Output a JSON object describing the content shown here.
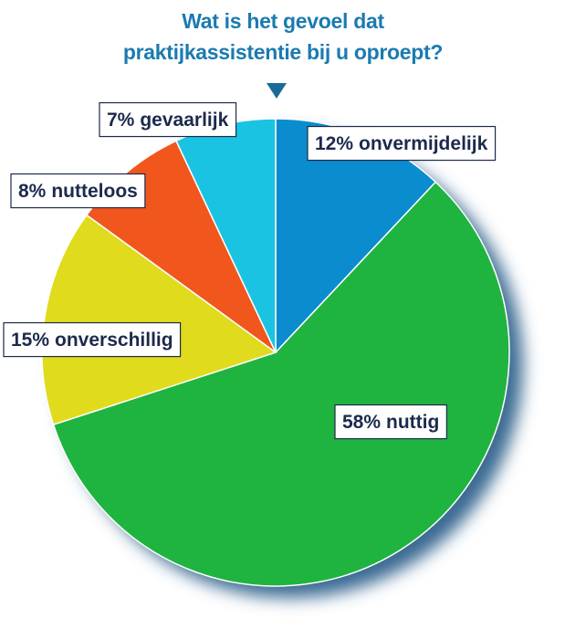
{
  "chart_data": {
    "type": "pie",
    "title": "Wat is het gevoel dat praktijkassistentie bij u oproept?",
    "categories": [
      "onvermijdelijk",
      "nuttig",
      "onverschillig",
      "nutteloos",
      "gevaarlijk"
    ],
    "values": [
      12,
      58,
      15,
      8,
      7
    ],
    "value_labels": [
      "12%",
      "58%",
      "15%",
      "8%",
      "7%"
    ],
    "colors": [
      "#0b8ccf",
      "#1fb43f",
      "#e0db1c",
      "#f1561d",
      "#1ac3e2"
    ]
  }
}
